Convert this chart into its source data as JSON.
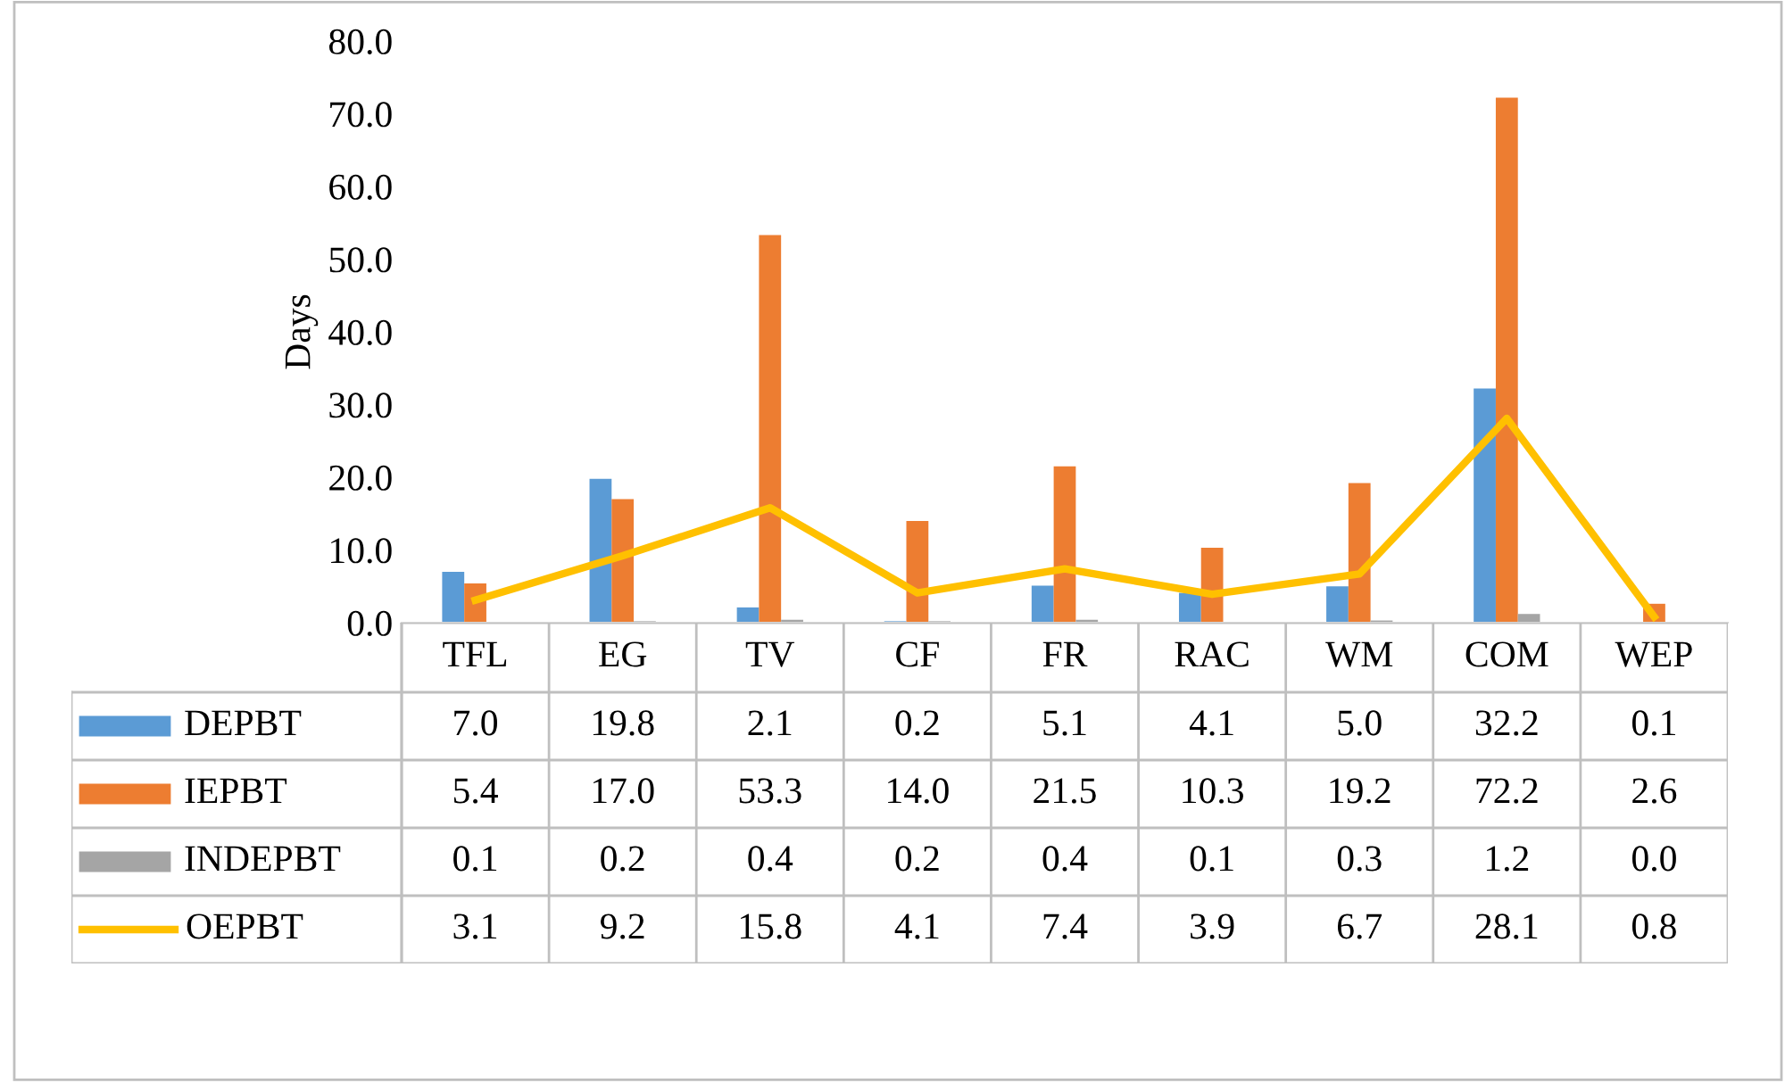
{
  "chart_data": {
    "type": "bar",
    "ylabel": "Days",
    "categories": [
      "TFL",
      "EG",
      "TV",
      "CF",
      "FR",
      "RAC",
      "WM",
      "COM",
      "WEP"
    ],
    "series": [
      {
        "name": "DEPBT",
        "color": "#5b9bd5",
        "values": [
          7.0,
          19.8,
          2.1,
          0.2,
          5.1,
          4.1,
          5.0,
          32.2,
          0.1
        ],
        "value_labels": [
          "7.0",
          "19.8",
          "2.1",
          "0.2",
          "5.1",
          "4.1",
          "5.0",
          "32.2",
          "0.1"
        ]
      },
      {
        "name": "IEPBT",
        "color": "#ed7d31",
        "values": [
          5.4,
          17.0,
          53.3,
          14.0,
          21.5,
          10.3,
          19.2,
          72.2,
          2.6
        ],
        "value_labels": [
          "5.4",
          "17.0",
          "53.3",
          "14.0",
          "21.5",
          "10.3",
          "19.2",
          "72.2",
          "2.6"
        ]
      },
      {
        "name": "INDEPBT",
        "color": "#a5a5a5",
        "values": [
          0.1,
          0.2,
          0.4,
          0.2,
          0.4,
          0.1,
          0.3,
          1.2,
          0.0
        ],
        "value_labels": [
          "0.1",
          "0.2",
          "0.4",
          "0.2",
          "0.4",
          "0.1",
          "0.3",
          "1.2",
          "0.0"
        ]
      },
      {
        "name": "OEPBT",
        "color": "#ffc000",
        "type": "line",
        "values": [
          3.1,
          9.2,
          15.8,
          4.1,
          7.4,
          3.9,
          6.7,
          28.1,
          0.8
        ],
        "value_labels": [
          "3.1",
          "9.2",
          "15.8",
          "4.1",
          "7.4",
          "3.9",
          "6.7",
          "28.1",
          "0.8"
        ]
      }
    ],
    "ylim": [
      0,
      80
    ],
    "yticks": [
      {
        "value": 0,
        "label": "0.0"
      },
      {
        "value": 10,
        "label": "10.0"
      },
      {
        "value": 20,
        "label": "20.0"
      },
      {
        "value": 30,
        "label": "30.0"
      },
      {
        "value": 40,
        "label": "40.0"
      },
      {
        "value": 50,
        "label": "50.0"
      },
      {
        "value": 60,
        "label": "60.0"
      },
      {
        "value": 70,
        "label": "70.0"
      },
      {
        "value": 80,
        "label": "80.0"
      }
    ],
    "grid": false,
    "legend": "bottom",
    "marker": "none"
  }
}
